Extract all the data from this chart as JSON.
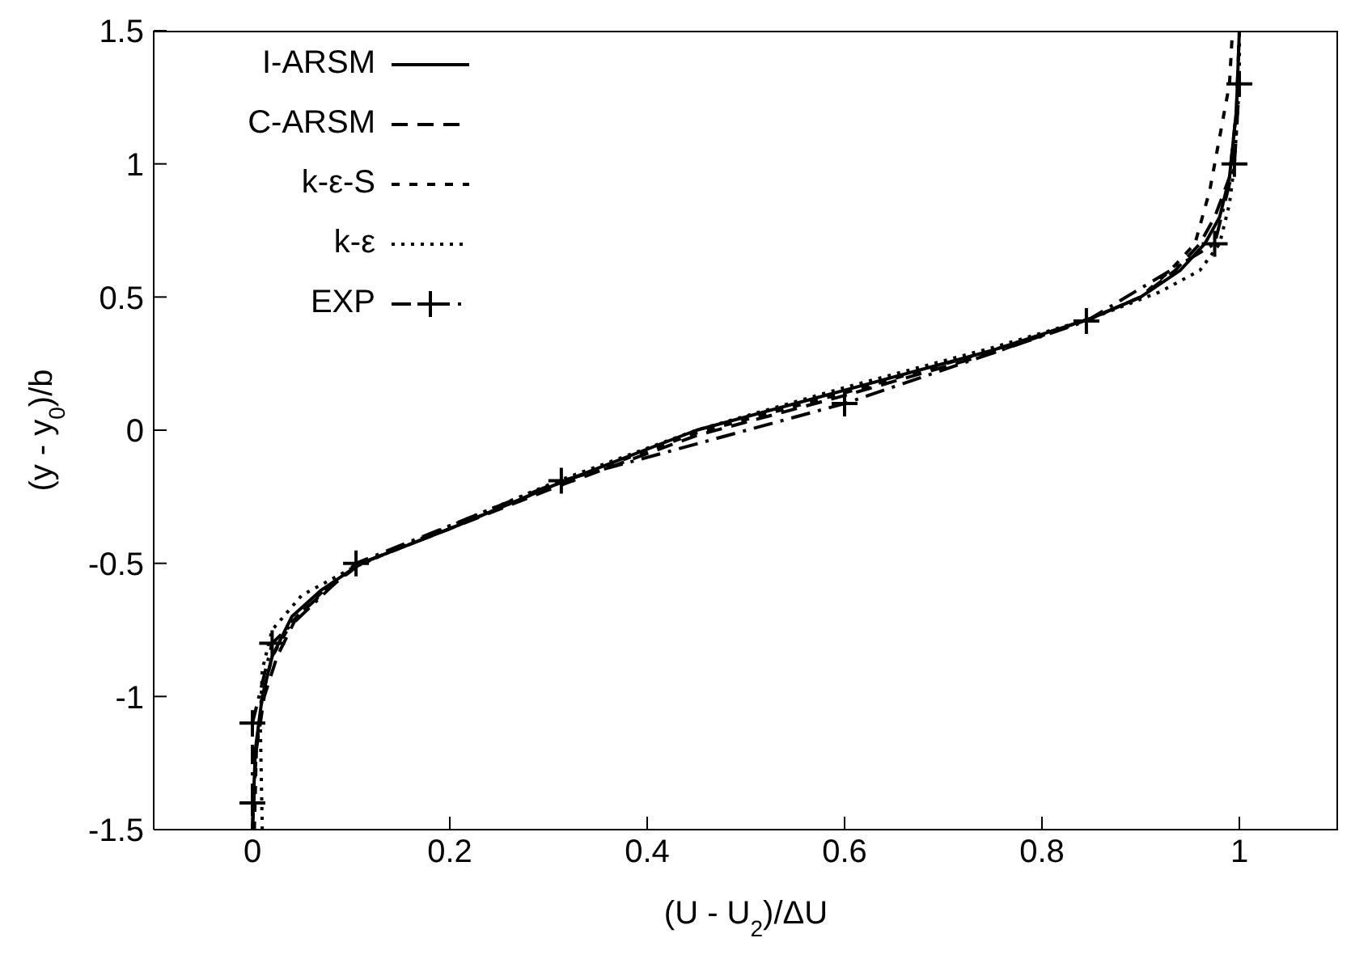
{
  "chart_data": {
    "type": "line",
    "xlabel": "(U - U$_{2}$)/ΔU",
    "ylabel": "(y - y$_{0}$)/b",
    "xlim": [
      -0.1,
      1.1
    ],
    "ylim": [
      -1.5,
      1.5
    ],
    "xticks": [
      0,
      0.2,
      0.4,
      0.6,
      0.8,
      1
    ],
    "yticks": [
      -1.5,
      -1,
      -0.5,
      0,
      0.5,
      1,
      1.5
    ],
    "legend": "top left",
    "series": [
      {
        "name": "I-ARSM",
        "color": "#000000",
        "line_style": "solid",
        "marker": "none",
        "x": [
          0,
          0.003,
          0.01,
          0.02,
          0.04,
          0.07,
          0.11,
          0.2,
          0.31,
          0.45,
          0.6,
          0.75,
          0.85,
          0.9,
          0.94,
          0.965,
          0.98,
          0.99,
          0.997,
          1
        ],
        "values": [
          -1.5,
          -1.2,
          -1,
          -0.85,
          -0.7,
          -0.6,
          -0.5,
          -0.37,
          -0.2,
          0,
          0.15,
          0.3,
          0.42,
          0.5,
          0.6,
          0.7,
          0.8,
          0.95,
          1.2,
          1.5
        ]
      },
      {
        "name": "C-ARSM",
        "color": "#000000",
        "line_style": "dashed",
        "marker": "none",
        "x": [
          0,
          0.004,
          0.012,
          0.025,
          0.045,
          0.075,
          0.11,
          0.2,
          0.31,
          0.45,
          0.6,
          0.75,
          0.85,
          0.9,
          0.935,
          0.96,
          0.975,
          0.99,
          0.997,
          1
        ],
        "values": [
          -1.5,
          -1.2,
          -1,
          -0.85,
          -0.7,
          -0.6,
          -0.5,
          -0.37,
          -0.21,
          -0.02,
          0.13,
          0.29,
          0.42,
          0.5,
          0.6,
          0.7,
          0.8,
          0.95,
          1.2,
          1.5
        ]
      },
      {
        "name": "k-ε-S",
        "color": "#000000",
        "line_style": "short dashed",
        "marker": "none",
        "x": [
          0.002,
          0.004,
          0.01,
          0.02,
          0.04,
          0.07,
          0.11,
          0.2,
          0.31,
          0.45,
          0.6,
          0.75,
          0.85,
          0.9,
          0.93,
          0.955,
          0.97,
          0.98,
          0.99,
          0.993
        ],
        "values": [
          -1.5,
          -1.2,
          -1,
          -0.85,
          -0.72,
          -0.61,
          -0.5,
          -0.37,
          -0.2,
          -0.01,
          0.14,
          0.3,
          0.42,
          0.5,
          0.6,
          0.7,
          0.9,
          1.1,
          1.3,
          1.5
        ]
      },
      {
        "name": "k-ε",
        "color": "#000000",
        "line_style": "dotted",
        "marker": "none",
        "x": [
          0.01,
          0.008,
          0.01,
          0.02,
          0.05,
          0.1,
          0.2,
          0.31,
          0.45,
          0.6,
          0.75,
          0.85,
          0.92,
          0.96,
          0.98,
          0.99,
          0.995,
          1,
          1
        ],
        "values": [
          -1.5,
          -1.1,
          -0.9,
          -0.75,
          -0.62,
          -0.52,
          -0.36,
          -0.19,
          0,
          0.16,
          0.31,
          0.42,
          0.52,
          0.6,
          0.7,
          0.85,
          1,
          1.3,
          1.5
        ]
      },
      {
        "name": "EXP",
        "color": "#000000",
        "line_style": "dashdot",
        "marker": "cross",
        "x": [
          0,
          0,
          0.02,
          0.105,
          0.313,
          0.6,
          0.845,
          0.975,
          0.995,
          1
        ],
        "values": [
          -1.4,
          -1.1,
          -0.8,
          -0.5,
          -0.19,
          0.1,
          0.41,
          0.7,
          1,
          1.3
        ]
      }
    ]
  }
}
